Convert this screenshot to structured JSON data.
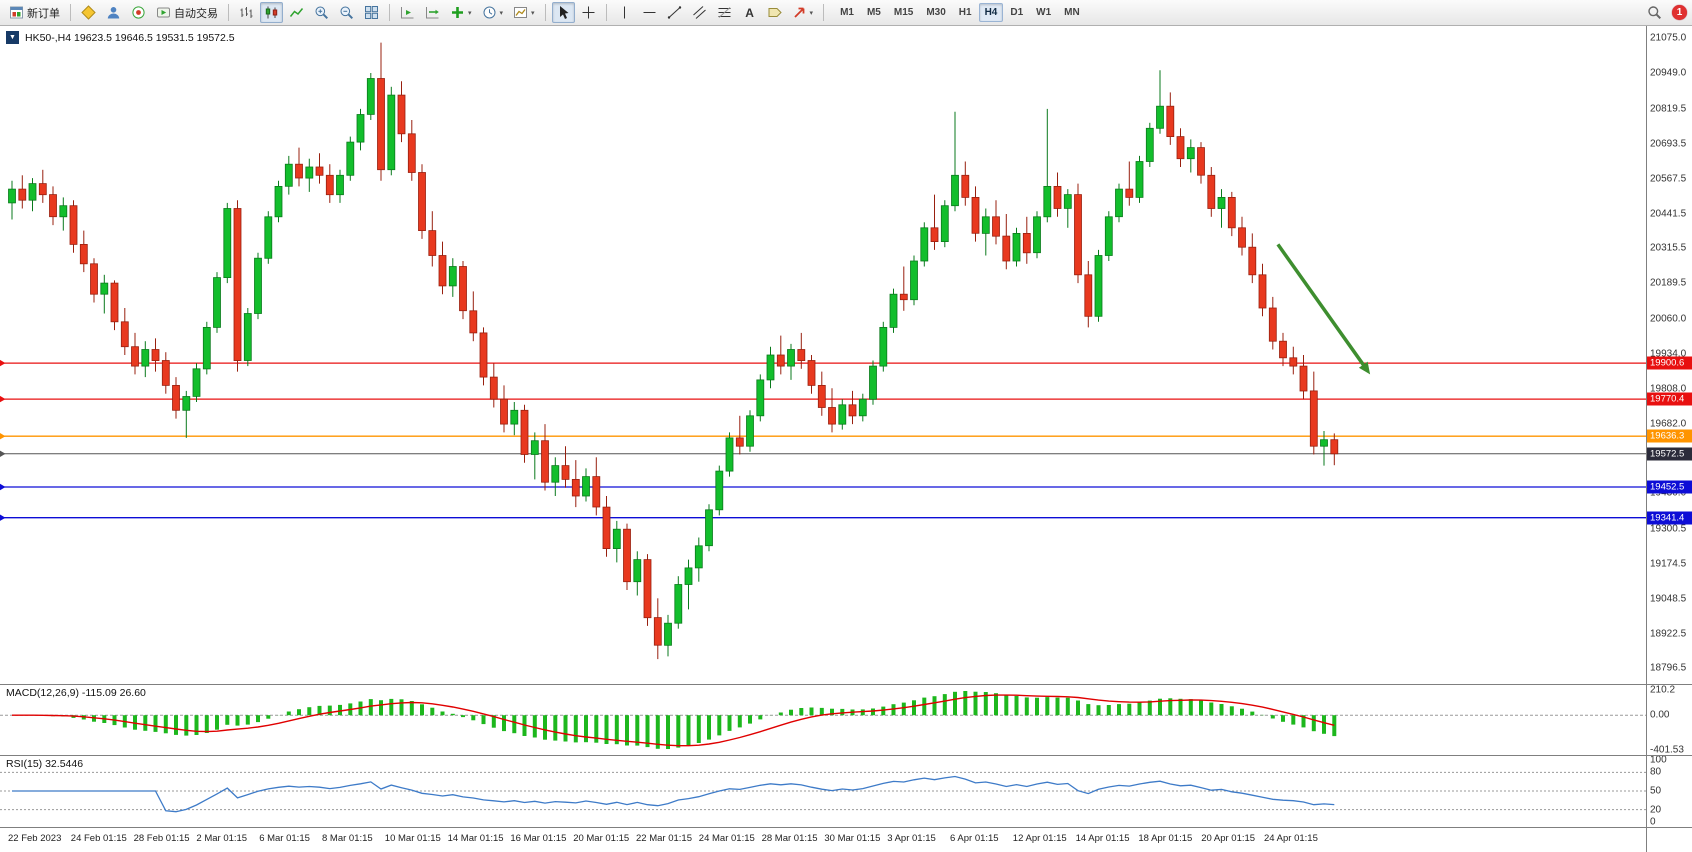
{
  "window": {
    "notification_count": "1"
  },
  "toolbar": {
    "new_order": "新订单",
    "auto_trading": "自动交易",
    "timeframes": [
      "M1",
      "M5",
      "M15",
      "M30",
      "H1",
      "H4",
      "D1",
      "W1",
      "MN"
    ],
    "active_timeframe": "H4"
  },
  "chart_header": {
    "ohlc_line": "HK50-,H4 19623.5 19646.5 19531.5 19572.5"
  },
  "chart_data": {
    "type": "candlestick",
    "symbol": "HK50-",
    "timeframe": "H4",
    "ohlc_readout": {
      "open": 19623.5,
      "high": 19646.5,
      "low": 19531.5,
      "close": 19572.5
    },
    "colors": {
      "up": "#12BE2C",
      "up_edge": "#0A7A1C",
      "down": "#E8391F",
      "down_edge": "#98200F",
      "macd_hist": "#1DB71D",
      "macd_signal": "#E00000",
      "rsi_line": "#3E7BC8",
      "arrow": "#3E8E2F"
    },
    "price_axis": {
      "min": 18740,
      "max": 21120,
      "ticks": [
        "21075.0",
        "20949.0",
        "20819.5",
        "20693.5",
        "20567.5",
        "20441.5",
        "20315.5",
        "20189.5",
        "20060.0",
        "19934.0",
        "19808.0",
        "19682.0",
        "19556.0",
        "19430.0",
        "19300.5",
        "19174.5",
        "19048.5",
        "18922.5",
        "18796.5"
      ]
    },
    "time_axis": [
      "22 Feb 2023",
      "24 Feb 01:15",
      "28 Feb 01:15",
      "2 Mar 01:15",
      "6 Mar 01:15",
      "8 Mar 01:15",
      "10 Mar 01:15",
      "14 Mar 01:15",
      "16 Mar 01:15",
      "20 Mar 01:15",
      "22 Mar 01:15",
      "24 Mar 01:15",
      "28 Mar 01:15",
      "30 Mar 01:15",
      "3 Apr 01:15",
      "6 Apr 01:15",
      "12 Apr 01:15",
      "14 Apr 01:15",
      "18 Apr 01:15",
      "20 Apr 01:15",
      "24 Apr 01:15"
    ],
    "horizontal_lines": [
      {
        "price": 19900.6,
        "color": "#E81010",
        "label": "19900.6"
      },
      {
        "price": 19770.4,
        "color": "#E81010",
        "label": "19770.4"
      },
      {
        "price": 19636.3,
        "color": "#FF9400",
        "label": "19636.3"
      },
      {
        "price": 19572.5,
        "color": "#555555",
        "tag_bg": "#2B2B3A",
        "label": "19572.5",
        "current": true
      },
      {
        "price": 19452.5,
        "color": "#0D0DD6",
        "label": "19452.5"
      },
      {
        "price": 19341.4,
        "color": "#0D0DD6",
        "label": "19341.4"
      }
    ],
    "annotation_arrow": {
      "from_index": 123.5,
      "from_price": 20330,
      "to_index": 132.5,
      "to_price": 19860
    },
    "indicators": [
      {
        "name": "MACD",
        "params": "12,26,9",
        "label": "MACD(12,26,9) -115.09 26.60",
        "values_text": [
          "-115.09",
          "26.60"
        ],
        "scale_labels": [
          "210.2",
          "0.00",
          "-401.53"
        ]
      },
      {
        "name": "RSI",
        "params": "15",
        "label": "RSI(15) 32.5446",
        "value_text": "32.5446",
        "scale_labels": [
          "100",
          "80",
          "50",
          "20",
          "0"
        ],
        "levels": [
          80,
          50,
          20
        ]
      }
    ],
    "candles": [
      [
        20480,
        20560,
        20420,
        20530
      ],
      [
        20530,
        20580,
        20460,
        20490
      ],
      [
        20490,
        20570,
        20450,
        20550
      ],
      [
        20550,
        20600,
        20480,
        20510
      ],
      [
        20510,
        20540,
        20400,
        20430
      ],
      [
        20430,
        20500,
        20380,
        20470
      ],
      [
        20470,
        20490,
        20300,
        20330
      ],
      [
        20330,
        20380,
        20230,
        20260
      ],
      [
        20260,
        20280,
        20120,
        20150
      ],
      [
        20150,
        20220,
        20080,
        20190
      ],
      [
        20190,
        20200,
        20020,
        20050
      ],
      [
        20050,
        20100,
        19930,
        19960
      ],
      [
        19960,
        20010,
        19860,
        19890
      ],
      [
        19890,
        19980,
        19850,
        19950
      ],
      [
        19950,
        19990,
        19870,
        19910
      ],
      [
        19910,
        19940,
        19790,
        19820
      ],
      [
        19820,
        19850,
        19700,
        19730
      ],
      [
        19730,
        19800,
        19630,
        19780
      ],
      [
        19780,
        19900,
        19760,
        19880
      ],
      [
        19880,
        20050,
        19860,
        20030
      ],
      [
        20030,
        20230,
        20010,
        20210
      ],
      [
        20210,
        20480,
        20190,
        20460
      ],
      [
        20460,
        20490,
        19870,
        19910
      ],
      [
        19910,
        20100,
        19890,
        20080
      ],
      [
        20080,
        20300,
        20060,
        20280
      ],
      [
        20280,
        20450,
        20260,
        20430
      ],
      [
        20430,
        20560,
        20410,
        20540
      ],
      [
        20540,
        20650,
        20510,
        20620
      ],
      [
        20620,
        20680,
        20540,
        20570
      ],
      [
        20570,
        20640,
        20520,
        20610
      ],
      [
        20610,
        20660,
        20550,
        20580
      ],
      [
        20580,
        20620,
        20480,
        20510
      ],
      [
        20510,
        20600,
        20480,
        20580
      ],
      [
        20580,
        20720,
        20560,
        20700
      ],
      [
        20700,
        20820,
        20670,
        20800
      ],
      [
        20800,
        20950,
        20780,
        20930
      ],
      [
        20930,
        21060,
        20560,
        20600
      ],
      [
        20600,
        20900,
        20580,
        20870
      ],
      [
        20870,
        20920,
        20700,
        20730
      ],
      [
        20730,
        20780,
        20560,
        20590
      ],
      [
        20590,
        20620,
        20350,
        20380
      ],
      [
        20380,
        20450,
        20250,
        20290
      ],
      [
        20290,
        20340,
        20150,
        20180
      ],
      [
        20180,
        20280,
        20140,
        20250
      ],
      [
        20250,
        20270,
        20060,
        20090
      ],
      [
        20090,
        20160,
        19980,
        20010
      ],
      [
        20010,
        20030,
        19820,
        19850
      ],
      [
        19850,
        19900,
        19740,
        19770
      ],
      [
        19770,
        19820,
        19650,
        19680
      ],
      [
        19680,
        19760,
        19640,
        19730
      ],
      [
        19730,
        19750,
        19540,
        19570
      ],
      [
        19570,
        19650,
        19480,
        19620
      ],
      [
        19620,
        19680,
        19440,
        19470
      ],
      [
        19470,
        19560,
        19420,
        19530
      ],
      [
        19530,
        19600,
        19450,
        19480
      ],
      [
        19480,
        19550,
        19380,
        19420
      ],
      [
        19420,
        19520,
        19400,
        19490
      ],
      [
        19490,
        19560,
        19350,
        19380
      ],
      [
        19380,
        19420,
        19200,
        19230
      ],
      [
        19230,
        19330,
        19180,
        19300
      ],
      [
        19300,
        19320,
        19080,
        19110
      ],
      [
        19110,
        19220,
        19060,
        19190
      ],
      [
        19190,
        19210,
        18950,
        18980
      ],
      [
        18980,
        19050,
        18830,
        18880
      ],
      [
        18880,
        18990,
        18840,
        18960
      ],
      [
        18960,
        19130,
        18940,
        19100
      ],
      [
        19100,
        19190,
        19010,
        19160
      ],
      [
        19160,
        19270,
        19110,
        19240
      ],
      [
        19240,
        19390,
        19220,
        19370
      ],
      [
        19370,
        19530,
        19350,
        19510
      ],
      [
        19510,
        19650,
        19490,
        19630
      ],
      [
        19630,
        19710,
        19570,
        19600
      ],
      [
        19600,
        19730,
        19580,
        19710
      ],
      [
        19710,
        19860,
        19690,
        19840
      ],
      [
        19840,
        19960,
        19810,
        19930
      ],
      [
        19930,
        20000,
        19860,
        19890
      ],
      [
        19890,
        19970,
        19840,
        19950
      ],
      [
        19950,
        20010,
        19880,
        19910
      ],
      [
        19910,
        19930,
        19790,
        19820
      ],
      [
        19820,
        19870,
        19710,
        19740
      ],
      [
        19740,
        19810,
        19650,
        19680
      ],
      [
        19680,
        19770,
        19660,
        19750
      ],
      [
        19750,
        19800,
        19680,
        19710
      ],
      [
        19710,
        19790,
        19690,
        19770
      ],
      [
        19770,
        19910,
        19750,
        19890
      ],
      [
        19890,
        20050,
        19870,
        20030
      ],
      [
        20030,
        20170,
        20010,
        20150
      ],
      [
        20150,
        20250,
        20090,
        20130
      ],
      [
        20130,
        20290,
        20110,
        20270
      ],
      [
        20270,
        20410,
        20250,
        20390
      ],
      [
        20390,
        20510,
        20310,
        20340
      ],
      [
        20340,
        20490,
        20320,
        20470
      ],
      [
        20470,
        20810,
        20450,
        20580
      ],
      [
        20580,
        20630,
        20470,
        20500
      ],
      [
        20500,
        20540,
        20340,
        20370
      ],
      [
        20370,
        20460,
        20290,
        20430
      ],
      [
        20430,
        20490,
        20330,
        20360
      ],
      [
        20360,
        20440,
        20240,
        20270
      ],
      [
        20270,
        20390,
        20250,
        20370
      ],
      [
        20370,
        20430,
        20260,
        20300
      ],
      [
        20300,
        20450,
        20280,
        20430
      ],
      [
        20430,
        20820,
        20410,
        20540
      ],
      [
        20540,
        20590,
        20430,
        20460
      ],
      [
        20460,
        20530,
        20390,
        20510
      ],
      [
        20510,
        20550,
        20190,
        20220
      ],
      [
        20220,
        20270,
        20030,
        20070
      ],
      [
        20070,
        20310,
        20050,
        20290
      ],
      [
        20290,
        20450,
        20270,
        20430
      ],
      [
        20430,
        20550,
        20410,
        20530
      ],
      [
        20530,
        20630,
        20470,
        20500
      ],
      [
        20500,
        20650,
        20480,
        20630
      ],
      [
        20630,
        20770,
        20610,
        20750
      ],
      [
        20750,
        20960,
        20730,
        20830
      ],
      [
        20830,
        20880,
        20690,
        20720
      ],
      [
        20720,
        20750,
        20610,
        20640
      ],
      [
        20640,
        20710,
        20590,
        20680
      ],
      [
        20680,
        20700,
        20550,
        20580
      ],
      [
        20580,
        20610,
        20430,
        20460
      ],
      [
        20460,
        20530,
        20390,
        20500
      ],
      [
        20500,
        20520,
        20360,
        20390
      ],
      [
        20390,
        20430,
        20290,
        20320
      ],
      [
        20320,
        20370,
        20190,
        20220
      ],
      [
        20220,
        20260,
        20070,
        20100
      ],
      [
        20100,
        20140,
        19950,
        19980
      ],
      [
        19980,
        20010,
        19890,
        19920
      ],
      [
        19920,
        19960,
        19860,
        19890
      ],
      [
        19890,
        19930,
        19770,
        19800
      ],
      [
        19800,
        19870,
        19570,
        19600
      ],
      [
        19600,
        19655,
        19530,
        19623.5
      ],
      [
        19623.5,
        19646.5,
        19531.5,
        19572.5
      ]
    ]
  }
}
